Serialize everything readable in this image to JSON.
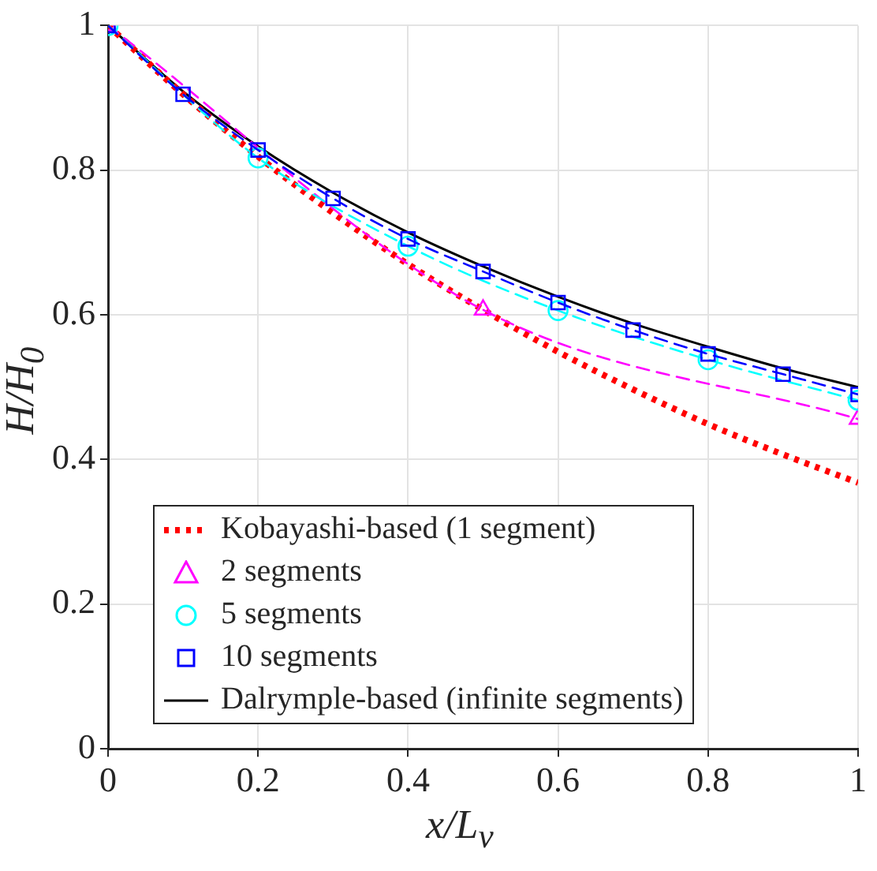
{
  "chart_data": {
    "type": "line",
    "xlabel": "x/L$_{v}$",
    "ylabel": "H/H$_{0}$",
    "xlim": [
      0,
      1
    ],
    "ylim": [
      0,
      1
    ],
    "xticks": [
      0,
      0.2,
      0.4,
      0.6,
      0.8,
      1
    ],
    "yticks": [
      0,
      0.2,
      0.4,
      0.6,
      0.8,
      1
    ],
    "grid": true,
    "legend": "bottom left",
    "series": [
      {
        "name": "Kobayashi-based (1 segment)",
        "color": "#ff0000",
        "line_style": "dotted",
        "marker": "none",
        "x": [
          0,
          0.1,
          0.2,
          0.3,
          0.4,
          0.5,
          0.6,
          0.7,
          0.8,
          0.9,
          1
        ],
        "values": [
          1,
          0.905,
          0.819,
          0.741,
          0.67,
          0.607,
          0.549,
          0.497,
          0.449,
          0.407,
          0.368
        ]
      },
      {
        "name": "2 segments",
        "color": "#ff00ff",
        "line_style": "dashed",
        "marker": "triangle",
        "x": [
          0,
          0.5,
          1
        ],
        "values": [
          1,
          0.607,
          0.456
        ]
      },
      {
        "name": "5 segments",
        "color": "#00ffff",
        "line_style": "dashed",
        "marker": "circle",
        "x": [
          0,
          0.2,
          0.4,
          0.6,
          0.8,
          1
        ],
        "values": [
          1,
          0.817,
          0.695,
          0.606,
          0.538,
          0.482
        ]
      },
      {
        "name": "10 segments",
        "color": "#0000ff",
        "line_style": "dashed",
        "marker": "square",
        "x": [
          0,
          0.1,
          0.2,
          0.3,
          0.4,
          0.5,
          0.6,
          0.7,
          0.8,
          0.9,
          1
        ],
        "values": [
          1,
          0.905,
          0.828,
          0.761,
          0.705,
          0.66,
          0.617,
          0.579,
          0.546,
          0.518,
          0.49
        ]
      },
      {
        "name": "Dalrymple-based (infinite segments)",
        "color": "#000000",
        "line_style": "solid",
        "marker": "none",
        "x": [
          0,
          0.1,
          0.2,
          0.3,
          0.4,
          0.5,
          0.6,
          0.7,
          0.8,
          0.9,
          1
        ],
        "values": [
          1,
          0.909,
          0.833,
          0.769,
          0.714,
          0.667,
          0.625,
          0.588,
          0.556,
          0.526,
          0.5
        ]
      }
    ]
  }
}
